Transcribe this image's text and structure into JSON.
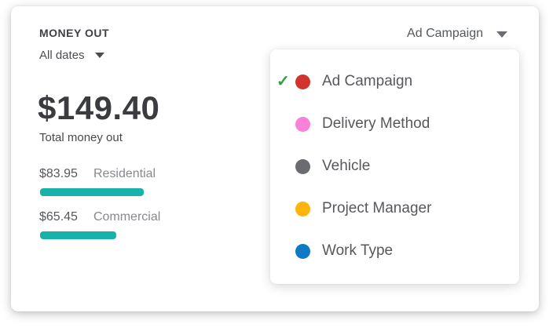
{
  "money_out_card": {
    "title": "MONEY OUT",
    "date_filter_label": "All dates",
    "total_amount": "$149.40",
    "total_label": "Total money out",
    "breakdown": [
      {
        "amount": "$83.95",
        "label": "Residential"
      },
      {
        "amount": "$65.45",
        "label": "Commercial"
      }
    ]
  },
  "group_by_dropdown": {
    "selected_label": "Ad Campaign",
    "check_icon": "✓",
    "items": [
      {
        "label": "Ad Campaign",
        "dot_color": "#d0342c",
        "selected": true
      },
      {
        "label": "Delivery Method",
        "dot_color": "#fb80d9",
        "selected": false
      },
      {
        "label": "Vehicle",
        "dot_color": "#6a6c71",
        "selected": false
      },
      {
        "label": "Project Manager",
        "dot_color": "#fdb40c",
        "selected": false
      },
      {
        "label": "Work Type",
        "dot_color": "#0e7ac4",
        "selected": false
      }
    ]
  },
  "chart_data": {
    "type": "bar",
    "title": "MONEY OUT",
    "categories": [
      "Residential",
      "Commercial"
    ],
    "values": [
      83.95,
      65.45
    ],
    "total": 149.4,
    "bar_color": "#17b2aa"
  },
  "colors": {
    "bar_teal": "#17b2aa",
    "check_green": "#2f9e44",
    "text_dark": "#3b3c40",
    "text_gray": "#87898e"
  }
}
